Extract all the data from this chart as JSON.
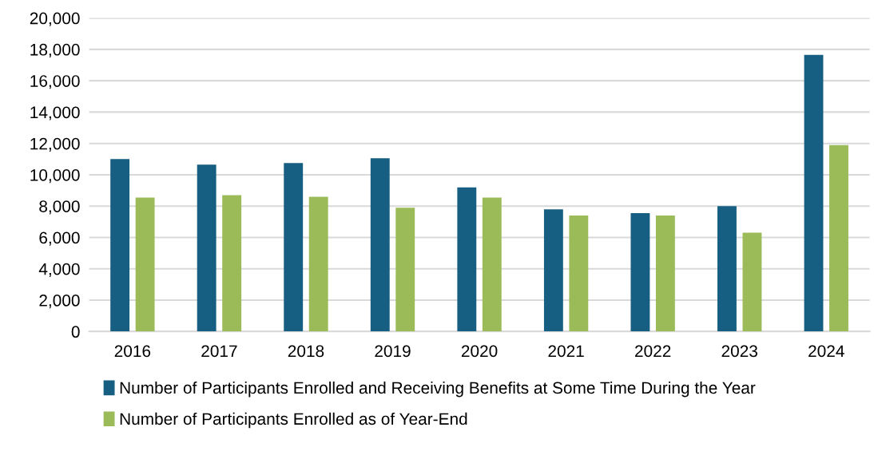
{
  "chart_data": {
    "type": "bar",
    "categories": [
      "2016",
      "2017",
      "2018",
      "2019",
      "2020",
      "2021",
      "2022",
      "2023",
      "2024"
    ],
    "series": [
      {
        "name": "Number of Participants Enrolled and Receiving Benefits at Some Time During the Year",
        "color": "#175f82",
        "values": [
          11000,
          10650,
          10750,
          11050,
          9200,
          7800,
          7550,
          8000,
          17650
        ]
      },
      {
        "name": "Number of Participants Enrolled as of Year-End",
        "color": "#9bbb59",
        "values": [
          8550,
          8700,
          8600,
          7900,
          8550,
          7400,
          7400,
          6300,
          11900
        ]
      }
    ],
    "ylim": [
      0,
      20000
    ],
    "yticks": [
      {
        "value": 0,
        "label": "0"
      },
      {
        "value": 2000,
        "label": "2,000"
      },
      {
        "value": 4000,
        "label": "4,000"
      },
      {
        "value": 6000,
        "label": "6,000"
      },
      {
        "value": 8000,
        "label": "8,000"
      },
      {
        "value": 10000,
        "label": "10,000"
      },
      {
        "value": 12000,
        "label": "12,000"
      },
      {
        "value": 14000,
        "label": "14,000"
      },
      {
        "value": 16000,
        "label": "16,000"
      },
      {
        "value": 18000,
        "label": "18,000"
      },
      {
        "value": 20000,
        "label": "20,000"
      }
    ],
    "grid": "y",
    "legend": "bottom"
  }
}
